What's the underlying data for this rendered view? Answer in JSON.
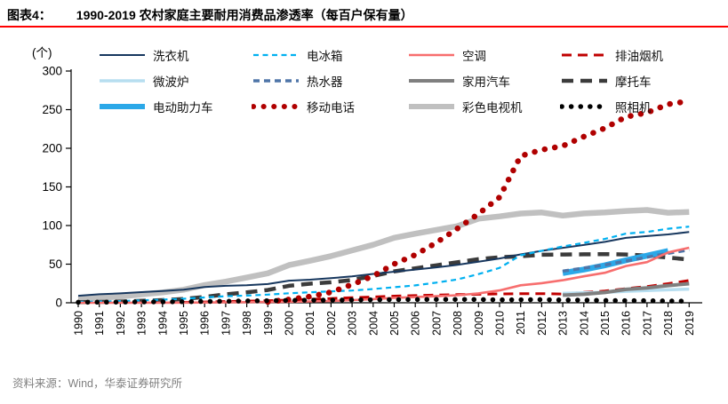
{
  "header": {
    "figure_label": "图表4：",
    "title": "1990-2019 农村家庭主要耐用消费品渗透率（每百户保有量）",
    "underline_color": "#FF0000"
  },
  "source": {
    "text": "资料来源：Wind，华泰证券研究所"
  },
  "chart_data": {
    "type": "line",
    "title": "1990-2019 农村家庭主要耐用消费品渗透率（每百户保有量）",
    "unit_label": "(个)",
    "ylabel": "",
    "xlabel": "",
    "ylim": [
      0,
      300
    ],
    "yticks": [
      0,
      50,
      100,
      150,
      200,
      250,
      300
    ],
    "grid": false,
    "legend_position": "top",
    "x": [
      1990,
      1991,
      1992,
      1993,
      1994,
      1995,
      1996,
      1997,
      1998,
      1999,
      2000,
      2001,
      2002,
      2003,
      2004,
      2005,
      2006,
      2007,
      2008,
      2009,
      2010,
      2011,
      2012,
      2013,
      2014,
      2015,
      2016,
      2017,
      2018,
      2019
    ],
    "draw_order": [
      10,
      3,
      4,
      7,
      0,
      1,
      8,
      5,
      2,
      6,
      9,
      11
    ],
    "series": [
      {
        "name": "洗衣机",
        "color": "#17375E",
        "dash": null,
        "width": 2,
        "values": [
          9.1,
          11.0,
          12.2,
          13.8,
          15.3,
          16.9,
          20.5,
          21.9,
          22.8,
          24.3,
          28.6,
          29.9,
          31.8,
          34.3,
          37.3,
          40.2,
          43.0,
          45.9,
          49.1,
          53.1,
          57.3,
          62.6,
          67.2,
          71.2,
          74.8,
          78.8,
          84.0,
          86.3,
          88.5,
          91.6
        ]
      },
      {
        "name": "电冰箱",
        "color": "#00B0F0",
        "dash": [
          6,
          4.5
        ],
        "width": 2.2,
        "values": [
          1.2,
          1.6,
          2.2,
          3.1,
          4.0,
          5.2,
          6.9,
          8.5,
          9.3,
          10.6,
          12.3,
          13.6,
          14.8,
          15.9,
          17.8,
          20.1,
          22.5,
          26.1,
          30.2,
          37.1,
          45.2,
          61.5,
          67.3,
          72.9,
          77.6,
          82.6,
          89.5,
          91.7,
          95.9,
          98.6
        ]
      },
      {
        "name": "空调",
        "color": "#F76E6E",
        "dash": null,
        "width": 2.6,
        "values": [
          0,
          0,
          0,
          0.1,
          0.1,
          0.2,
          0.4,
          0.6,
          0.8,
          1.0,
          1.3,
          1.7,
          2.3,
          3.5,
          4.7,
          6.4,
          7.3,
          8.5,
          9.8,
          12.2,
          16.0,
          22.6,
          25.4,
          29.2,
          34.2,
          38.8,
          47.6,
          52.6,
          65.2,
          71.3
        ]
      },
      {
        "name": "排油烟机",
        "color": "#C00000",
        "dash": [
          11,
          7
        ],
        "width": 3,
        "values": [
          null,
          null,
          null,
          null,
          null,
          0.6,
          1.0,
          1.6,
          2.2,
          2.8,
          3.5,
          4.5,
          5.5,
          6.5,
          7.5,
          8.6,
          9.3,
          10.0,
          10.6,
          11.0,
          11.5,
          11.7,
          11.8,
          11.3,
          13.4,
          15.2,
          18.3,
          21.0,
          24.7,
          28.9
        ]
      },
      {
        "name": "微波炉",
        "color": "#B7DEF0",
        "dash": null,
        "width": 3.5,
        "values": [
          null,
          null,
          null,
          null,
          null,
          null,
          null,
          null,
          null,
          null,
          null,
          null,
          null,
          null,
          null,
          null,
          null,
          null,
          null,
          null,
          null,
          null,
          null,
          12.2,
          13.0,
          13.6,
          14.8,
          15.8,
          16.8,
          17.7
        ]
      },
      {
        "name": "热水器",
        "color": "#4E75A8",
        "dash": [
          7,
          5
        ],
        "width": 3.5,
        "values": [
          null,
          null,
          null,
          null,
          null,
          null,
          null,
          null,
          null,
          null,
          null,
          null,
          null,
          null,
          null,
          null,
          null,
          null,
          null,
          null,
          null,
          null,
          null,
          41.0,
          45.0,
          49.0,
          54.0,
          59.0,
          64.0,
          68.5
        ]
      },
      {
        "name": "家用汽车",
        "color": "#7F7F7F",
        "dash": null,
        "width": 4,
        "values": [
          null,
          null,
          null,
          null,
          null,
          null,
          null,
          null,
          null,
          null,
          null,
          null,
          null,
          null,
          null,
          null,
          null,
          null,
          null,
          null,
          null,
          null,
          null,
          9.9,
          11.0,
          13.3,
          17.4,
          19.3,
          22.3,
          24.7
        ]
      },
      {
        "name": "摩托车",
        "color": "#3B3B3B",
        "dash": [
          13,
          8
        ],
        "width": 4.5,
        "values": [
          0.9,
          1.2,
          1.6,
          2.5,
          3.4,
          4.9,
          7.6,
          10.9,
          13.5,
          16.5,
          21.9,
          24.7,
          26.6,
          29.4,
          34.7,
          40.7,
          44.6,
          48.5,
          52.5,
          56.4,
          59.0,
          60.2,
          62.2,
          62.5,
          62.8,
          63.0,
          62.5,
          61.0,
          58.5,
          56.0
        ]
      },
      {
        "name": "电动助力车",
        "color": "#2BA8E8",
        "dash": null,
        "width": 6.5,
        "values": [
          null,
          null,
          null,
          null,
          null,
          null,
          null,
          null,
          null,
          null,
          null,
          null,
          null,
          null,
          null,
          null,
          null,
          null,
          null,
          null,
          null,
          null,
          null,
          38.5,
          43.0,
          48.5,
          55.0,
          61.0,
          67.0,
          null
        ]
      },
      {
        "name": "移动电话",
        "color": "#B00000",
        "dash": [
          0.1,
          11.5
        ],
        "width": 6.5,
        "values": [
          null,
          null,
          null,
          null,
          null,
          null,
          null,
          null,
          null,
          1.2,
          4.3,
          8.1,
          13.7,
          23.7,
          34.7,
          50.2,
          62.1,
          77.8,
          96.1,
          115.2,
          136.5,
          190.0,
          198.0,
          203.0,
          215.0,
          226.1,
          240.7,
          246.1,
          257.0,
          261.2
        ]
      },
      {
        "name": "彩色电视机",
        "color": "#C0C0C0",
        "dash": null,
        "width": 6.5,
        "values": [
          4.7,
          6.4,
          8.1,
          10.9,
          13.5,
          16.9,
          22.9,
          27.3,
          32.6,
          38.2,
          48.7,
          54.4,
          60.5,
          67.8,
          75.1,
          84.1,
          89.4,
          94.4,
          99.2,
          108.9,
          111.8,
          115.5,
          116.9,
          112.9,
          115.6,
          116.9,
          118.8,
          120.1,
          116.6,
          117.6
        ]
      },
      {
        "name": "照相机",
        "color": "#000000",
        "dash": [
          0.1,
          10.5
        ],
        "width": 5.5,
        "values": [
          0.7,
          0.8,
          0.9,
          1.1,
          1.3,
          1.4,
          1.7,
          2.0,
          2.4,
          2.7,
          3.1,
          3.3,
          3.5,
          3.7,
          3.9,
          4.1,
          4.2,
          4.4,
          4.4,
          4.2,
          3.8,
          3.9,
          4.1,
          3.6,
          3.4,
          3.0,
          2.8,
          2.6,
          2.3,
          2.1
        ]
      }
    ]
  }
}
